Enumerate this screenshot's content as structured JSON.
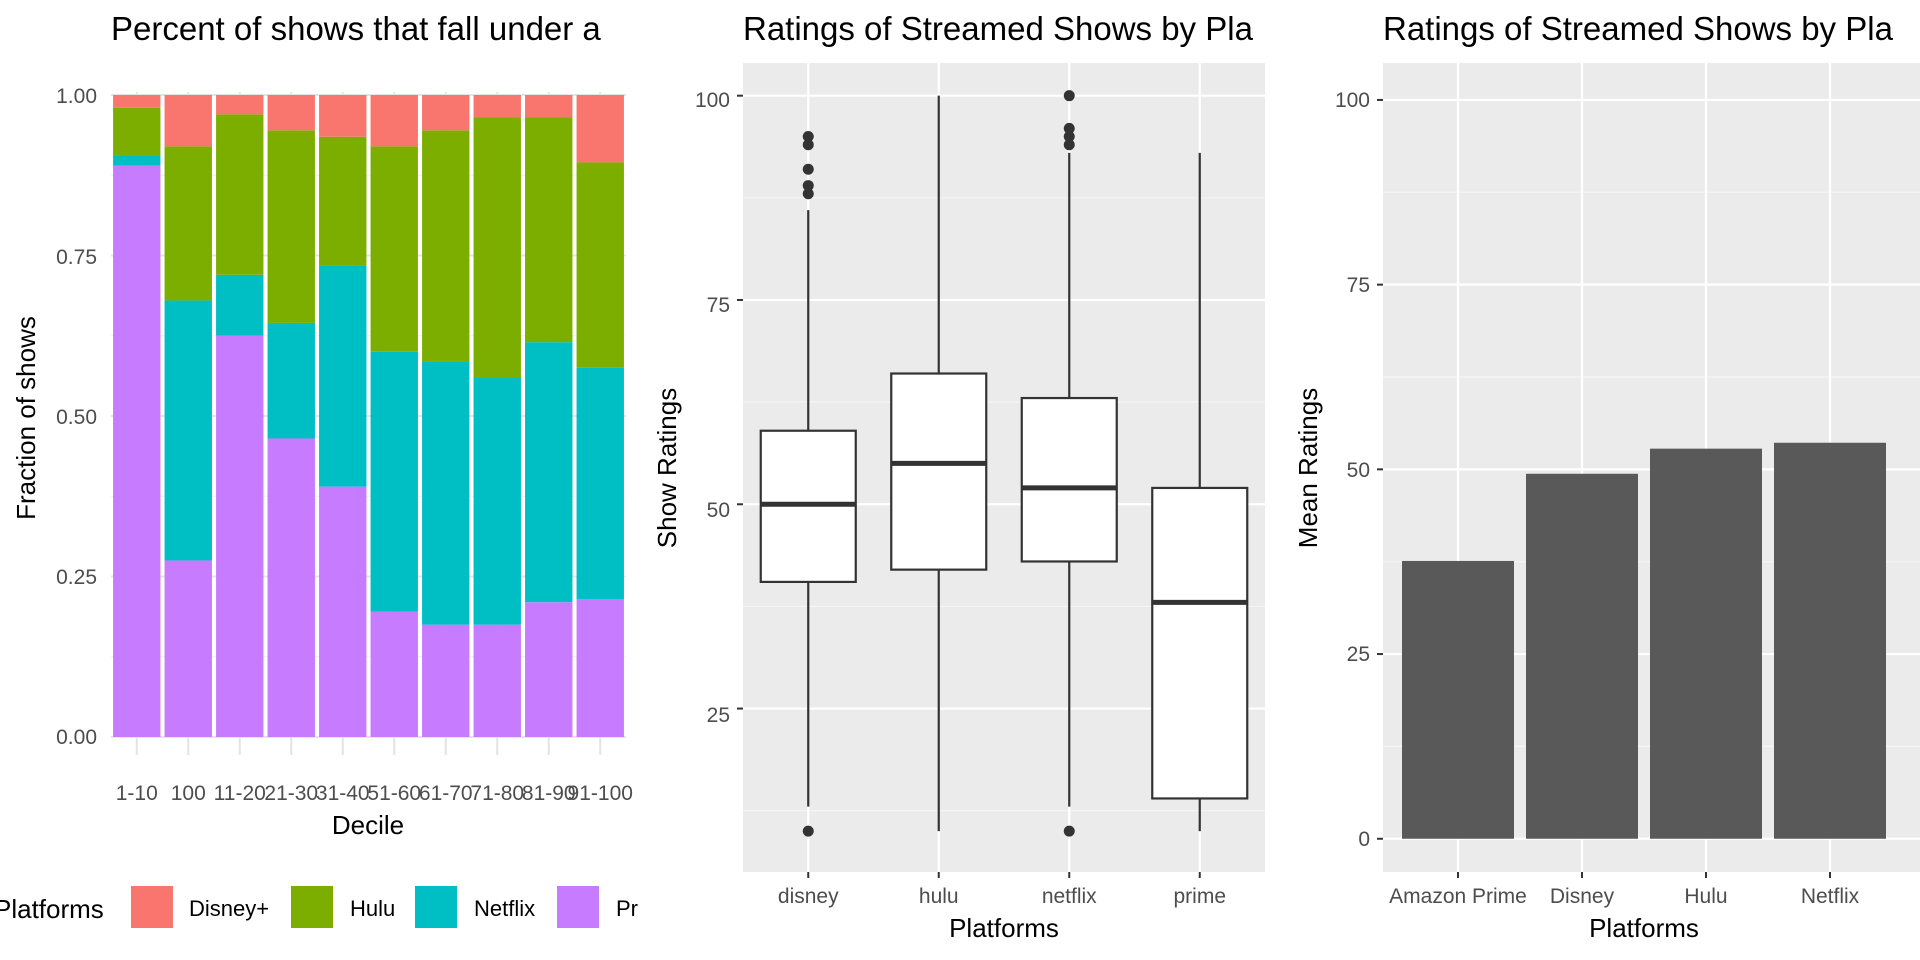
{
  "chart_data": [
    {
      "type": "bar",
      "stacked": "fill",
      "title": "Percent of shows that fall under a",
      "xlabel": "Decile",
      "ylabel": "Fraction of shows",
      "ylim": [
        0,
        1
      ],
      "yticks": [
        "0.00",
        "0.25",
        "0.50",
        "0.75",
        "1.00"
      ],
      "categories": [
        "1-10",
        "100",
        "11-20",
        "21-30",
        "31-40",
        "51-60",
        "61-70",
        "71-80",
        "81-90",
        "91-100"
      ],
      "series": [
        {
          "name": "Pr",
          "color": "#C77CFF",
          "values": [
            0.89,
            0.275,
            0.625,
            0.465,
            0.39,
            0.195,
            0.175,
            0.175,
            0.21,
            0.215
          ]
        },
        {
          "name": "Netflix",
          "color": "#00BFC4",
          "values": [
            0.015,
            0.405,
            0.095,
            0.18,
            0.345,
            0.405,
            0.41,
            0.385,
            0.405,
            0.36
          ]
        },
        {
          "name": "Hulu",
          "color": "#7CAE00",
          "values": [
            0.075,
            0.24,
            0.25,
            0.3,
            0.2,
            0.32,
            0.36,
            0.405,
            0.35,
            0.32
          ]
        },
        {
          "name": "Disney+",
          "color": "#F8766D",
          "values": [
            0.02,
            0.08,
            0.03,
            0.055,
            0.065,
            0.08,
            0.055,
            0.035,
            0.035,
            0.105
          ]
        }
      ],
      "legend": {
        "title": "Platforms",
        "position": "bottom",
        "entries": [
          "Disney+",
          "Hulu",
          "Netflix",
          "Pr"
        ]
      }
    },
    {
      "type": "box",
      "title": "Ratings of Streamed Shows by Pla",
      "xlabel": "Platforms",
      "ylabel": "Show Ratings",
      "ylim": [
        5,
        104
      ],
      "yticks": [
        "25",
        "50",
        "75",
        "100"
      ],
      "categories": [
        "disney",
        "hulu",
        "netflix",
        "prime"
      ],
      "boxes": [
        {
          "name": "disney",
          "whisker_low": 13,
          "q1": 40.5,
          "median": 50,
          "q3": 59,
          "whisker_high": 86,
          "outliers": [
            10,
            88,
            89,
            91,
            94,
            95
          ]
        },
        {
          "name": "hulu",
          "whisker_low": 10,
          "q1": 42,
          "median": 55,
          "q3": 66,
          "whisker_high": 100,
          "outliers": []
        },
        {
          "name": "netflix",
          "whisker_low": 13,
          "q1": 43,
          "median": 52,
          "q3": 63,
          "whisker_high": 93,
          "outliers": [
            10,
            94,
            95,
            96,
            100
          ]
        },
        {
          "name": "prime",
          "whisker_low": 10,
          "q1": 14,
          "median": 38,
          "q3": 52,
          "whisker_high": 93,
          "outliers": []
        }
      ]
    },
    {
      "type": "bar",
      "title": "Ratings of Streamed Shows by Pla",
      "xlabel": "Platforms",
      "ylabel": "Mean Ratings",
      "ylim": [
        -4.5,
        105
      ],
      "yticks": [
        "0",
        "25",
        "50",
        "75",
        "100"
      ],
      "categories": [
        "Amazon Prime",
        "Disney",
        "Hulu",
        "Netflix"
      ],
      "values": [
        37.6,
        49.4,
        52.8,
        53.6
      ],
      "color": "#595959"
    }
  ]
}
